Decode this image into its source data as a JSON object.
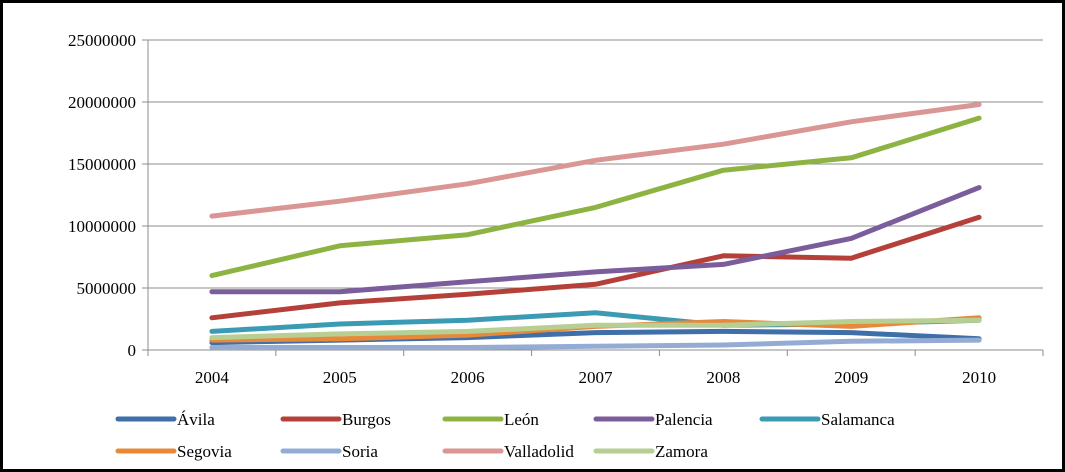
{
  "chart_data": {
    "type": "line",
    "title": "",
    "xlabel": "",
    "ylabel": "",
    "categories": [
      "2004",
      "2005",
      "2006",
      "2007",
      "2008",
      "2009",
      "2010"
    ],
    "ylim": [
      0,
      25000000
    ],
    "yticks": [
      0,
      5000000,
      10000000,
      15000000,
      20000000,
      25000000
    ],
    "ytick_labels": [
      "0",
      "5000000",
      "10000000",
      "15000000",
      "20000000",
      "25000000"
    ],
    "grid": true,
    "legend_position": "bottom",
    "series": [
      {
        "name": "Ávila",
        "color": "#3f6fa8",
        "values": [
          600000,
          800000,
          1000000,
          1400000,
          1500000,
          1400000,
          900000
        ]
      },
      {
        "name": "Burgos",
        "color": "#b5403a",
        "values": [
          2600000,
          3800000,
          4500000,
          5300000,
          7600000,
          7400000,
          10700000
        ]
      },
      {
        "name": "León",
        "color": "#8db443",
        "values": [
          6000000,
          8400000,
          9300000,
          11500000,
          14500000,
          15500000,
          18700000
        ]
      },
      {
        "name": "Palencia",
        "color": "#7a5d9a",
        "values": [
          4700000,
          4700000,
          5500000,
          6300000,
          6900000,
          9000000,
          13100000
        ]
      },
      {
        "name": "Salamanca",
        "color": "#3b9bb5",
        "values": [
          1500000,
          2100000,
          2400000,
          3000000,
          2000000,
          2100000,
          2400000
        ]
      },
      {
        "name": "Segovia",
        "color": "#e8893a",
        "values": [
          800000,
          900000,
          1200000,
          1900000,
          2300000,
          1900000,
          2600000
        ]
      },
      {
        "name": "Soria",
        "color": "#94acd4",
        "values": [
          200000,
          200000,
          200000,
          300000,
          400000,
          700000,
          800000
        ]
      },
      {
        "name": "Valladolid",
        "color": "#d99694",
        "values": [
          10800000,
          12000000,
          13400000,
          15300000,
          16600000,
          18400000,
          19800000
        ]
      },
      {
        "name": "Zamora",
        "color": "#b8cf94",
        "values": [
          1000000,
          1300000,
          1500000,
          2000000,
          2000000,
          2300000,
          2400000
        ]
      }
    ]
  }
}
